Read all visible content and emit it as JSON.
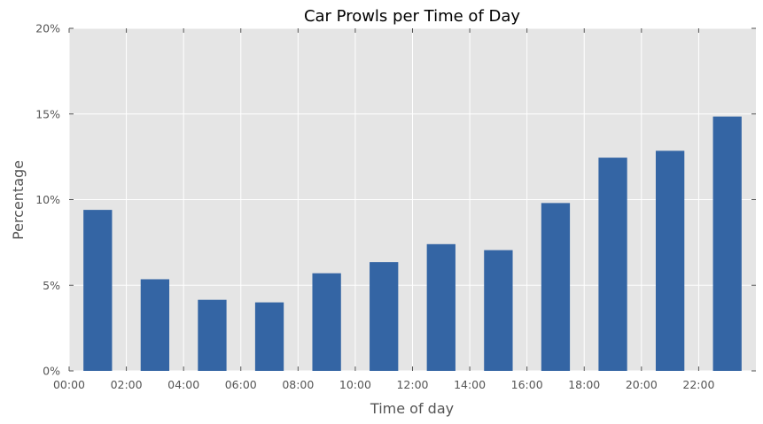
{
  "chart_data": {
    "type": "bar",
    "title": "Car Prowls per Time of Day",
    "xlabel": "Time of day",
    "ylabel": "Percentage",
    "x_ticks": [
      "00:00",
      "02:00",
      "04:00",
      "06:00",
      "08:00",
      "10:00",
      "12:00",
      "14:00",
      "16:00",
      "18:00",
      "20:00",
      "22:00"
    ],
    "y_ticks": [
      "0%",
      "5%",
      "10%",
      "15%",
      "20%"
    ],
    "ylim": [
      0,
      20
    ],
    "xlim": [
      "00:00",
      "24:00"
    ],
    "grid": true,
    "categories": [
      "01:00",
      "03:00",
      "05:00",
      "07:00",
      "09:00",
      "11:00",
      "13:00",
      "15:00",
      "17:00",
      "19:00",
      "21:00",
      "23:00"
    ],
    "values": [
      9.4,
      5.35,
      4.15,
      4.0,
      5.7,
      6.35,
      7.4,
      7.05,
      9.8,
      12.45,
      12.85,
      14.85
    ],
    "bar_color": "#3465a4",
    "background_color": "#e5e5e5"
  }
}
